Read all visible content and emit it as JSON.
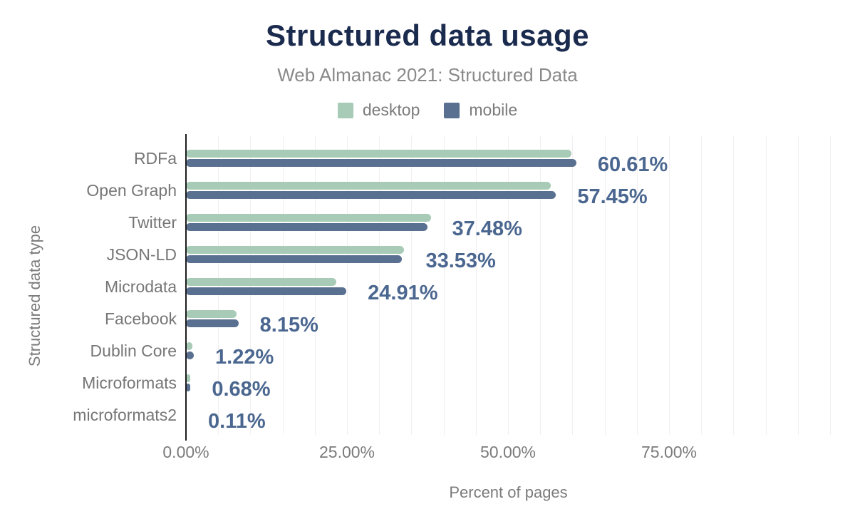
{
  "header": {
    "title": "Structured data usage",
    "subtitle": "Web Almanac 2021: Structured Data"
  },
  "colors": {
    "title_navy": "#1b2b4e",
    "desktop_green": "#a7cbb6",
    "mobile_slate": "#5a7090",
    "value_label": "#4b6790",
    "muted_text": "#7b7b7b",
    "axis_line": "#1c1c1c",
    "gridline": "#f1efef",
    "background": "#ffffff"
  },
  "chart_data": {
    "type": "bar",
    "orientation": "horizontal",
    "title": "Structured data usage",
    "subtitle": "Web Almanac 2021: Structured Data",
    "xlabel": "Percent of pages",
    "ylabel": "Structured data type",
    "xlim": [
      0,
      100
    ],
    "grid": true,
    "grid_step_percent": 5,
    "legend_position": "top",
    "x_ticks": [
      {
        "value": 0,
        "label": "0.00%"
      },
      {
        "value": 25,
        "label": "25.00%"
      },
      {
        "value": 50,
        "label": "50.00%"
      },
      {
        "value": 75,
        "label": "75.00%"
      }
    ],
    "categories": [
      "RDFa",
      "Open Graph",
      "Twitter",
      "JSON-LD",
      "Microdata",
      "Facebook",
      "Dublin Core",
      "Microformats",
      "microformats2"
    ],
    "series": [
      {
        "name": "desktop",
        "color": "#a7cbb6",
        "values": [
          59.8,
          56.6,
          38.0,
          33.9,
          23.3,
          7.9,
          1.0,
          0.7,
          0.08
        ],
        "note": "values estimated from bar lengths; not labeled in image"
      },
      {
        "name": "mobile",
        "color": "#5a7090",
        "values": [
          60.61,
          57.45,
          37.48,
          33.53,
          24.91,
          8.15,
          1.22,
          0.68,
          0.11
        ]
      }
    ],
    "data_labels": [
      "60.61%",
      "57.45%",
      "37.48%",
      "33.53%",
      "24.91%",
      "8.15%",
      "1.22%",
      "0.68%",
      "0.11%"
    ],
    "data_labels_series": "mobile"
  }
}
